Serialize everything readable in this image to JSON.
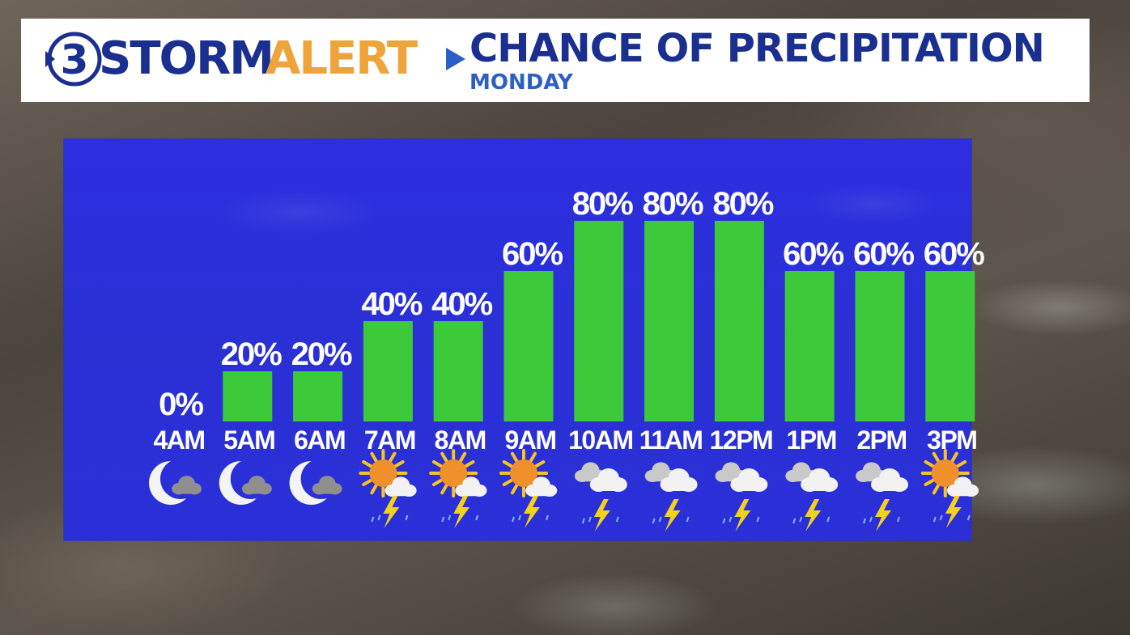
{
  "header": {
    "logo_number": "3",
    "logo_storm": "STORM",
    "logo_alert": "ALERT",
    "title": "CHANCE OF PRECIPITATION",
    "subtitle": "MONDAY"
  },
  "colors": {
    "bar": "#3cc93a",
    "panel": "#2b2fd8",
    "brand_blue": "#1a2f8f",
    "brand_orange": "#eea43a"
  },
  "chart_data": {
    "type": "bar",
    "categories": [
      "4AM",
      "5AM",
      "6AM",
      "7AM",
      "8AM",
      "9AM",
      "10AM",
      "11AM",
      "12PM",
      "1PM",
      "2PM",
      "3PM"
    ],
    "values": [
      0,
      20,
      20,
      40,
      40,
      60,
      80,
      80,
      80,
      60,
      60,
      60
    ],
    "data_labels": [
      "0%",
      "20%",
      "20%",
      "40%",
      "40%",
      "60%",
      "80%",
      "80%",
      "80%",
      "60%",
      "60%",
      "60%"
    ],
    "icons": [
      "moon-cloud-icon",
      "moon-cloud-icon",
      "moon-cloud-icon",
      "sun-storm-icon",
      "sun-storm-icon",
      "sun-storm-icon",
      "cloud-storm-icon",
      "cloud-storm-icon",
      "cloud-storm-icon",
      "cloud-storm-icon",
      "cloud-storm-icon",
      "sun-storm-icon"
    ],
    "ylim": [
      0,
      100
    ],
    "grid": false,
    "legend": "none"
  }
}
